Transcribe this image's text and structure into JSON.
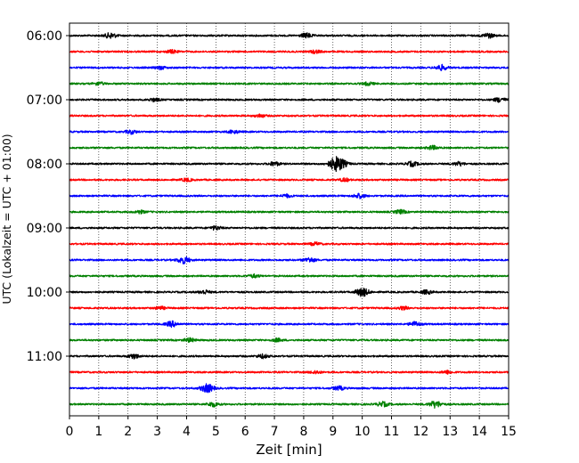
{
  "chart_data": {
    "type": "line",
    "title": "",
    "subtitle": "",
    "xlabel": "Zeit  [min]",
    "ylabel": "UTC (Lokalzeit = UTC + 01:00)",
    "xlim": [
      0,
      15
    ],
    "x_ticks": [
      "0",
      "1",
      "2",
      "3",
      "4",
      "5",
      "6",
      "7",
      "8",
      "9",
      "10",
      "11",
      "12",
      "13",
      "14",
      "15"
    ],
    "y_ticks": [
      "06:00",
      "07:00",
      "08:00",
      "09:00",
      "10:00",
      "11:00"
    ],
    "grid": "vertical dotted",
    "legend": "none",
    "trace_interval_minutes": 15,
    "trace_count": 24,
    "trace_colors": [
      "#000000",
      "#ff0000",
      "#0000ff",
      "#008000"
    ],
    "traces": [
      {
        "start": "06:00",
        "color": "#000000",
        "events": [
          {
            "t": 1.4,
            "amp": 0.35
          },
          {
            "t": 8.1,
            "amp": 0.3
          },
          {
            "t": 14.3,
            "amp": 0.3
          }
        ]
      },
      {
        "start": "06:15",
        "color": "#ff0000",
        "events": [
          {
            "t": 3.5,
            "amp": 0.2
          },
          {
            "t": 8.4,
            "amp": 0.2
          }
        ]
      },
      {
        "start": "06:30",
        "color": "#0000ff",
        "events": [
          {
            "t": 3.1,
            "amp": 0.2
          },
          {
            "t": 12.7,
            "amp": 0.35
          }
        ]
      },
      {
        "start": "06:45",
        "color": "#008000",
        "events": [
          {
            "t": 1.0,
            "amp": 0.2
          },
          {
            "t": 10.2,
            "amp": 0.2
          }
        ]
      },
      {
        "start": "07:00",
        "color": "#000000",
        "events": [
          {
            "t": 2.9,
            "amp": 0.2
          },
          {
            "t": 14.7,
            "amp": 0.3
          }
        ]
      },
      {
        "start": "07:15",
        "color": "#ff0000",
        "events": [
          {
            "t": 6.5,
            "amp": 0.2
          }
        ]
      },
      {
        "start": "07:30",
        "color": "#0000ff",
        "events": [
          {
            "t": 2.1,
            "amp": 0.25
          },
          {
            "t": 5.6,
            "amp": 0.2
          }
        ]
      },
      {
        "start": "07:45",
        "color": "#008000",
        "events": [
          {
            "t": 12.4,
            "amp": 0.25
          }
        ]
      },
      {
        "start": "08:00",
        "color": "#000000",
        "events": [
          {
            "t": 7.0,
            "amp": 0.25
          },
          {
            "t": 9.15,
            "amp": 1.0
          },
          {
            "t": 11.7,
            "amp": 0.3
          },
          {
            "t": 13.3,
            "amp": 0.25
          }
        ]
      },
      {
        "start": "08:15",
        "color": "#ff0000",
        "events": [
          {
            "t": 4.0,
            "amp": 0.2
          },
          {
            "t": 9.4,
            "amp": 0.2
          }
        ]
      },
      {
        "start": "08:30",
        "color": "#0000ff",
        "events": [
          {
            "t": 7.4,
            "amp": 0.2
          },
          {
            "t": 9.9,
            "amp": 0.3
          }
        ]
      },
      {
        "start": "08:45",
        "color": "#008000",
        "events": [
          {
            "t": 2.4,
            "amp": 0.2
          },
          {
            "t": 11.3,
            "amp": 0.25
          }
        ]
      },
      {
        "start": "09:00",
        "color": "#000000",
        "events": [
          {
            "t": 5.0,
            "amp": 0.25
          }
        ]
      },
      {
        "start": "09:15",
        "color": "#ff0000",
        "events": [
          {
            "t": 8.4,
            "amp": 0.2
          }
        ]
      },
      {
        "start": "09:30",
        "color": "#0000ff",
        "events": [
          {
            "t": 3.9,
            "amp": 0.45
          },
          {
            "t": 8.2,
            "amp": 0.3
          }
        ]
      },
      {
        "start": "09:45",
        "color": "#008000",
        "events": [
          {
            "t": 6.3,
            "amp": 0.2
          }
        ]
      },
      {
        "start": "10:00",
        "color": "#000000",
        "events": [
          {
            "t": 4.6,
            "amp": 0.25
          },
          {
            "t": 10.0,
            "amp": 0.55
          },
          {
            "t": 12.2,
            "amp": 0.25
          }
        ]
      },
      {
        "start": "10:15",
        "color": "#ff0000",
        "events": [
          {
            "t": 3.1,
            "amp": 0.2
          },
          {
            "t": 11.4,
            "amp": 0.2
          }
        ]
      },
      {
        "start": "10:30",
        "color": "#0000ff",
        "events": [
          {
            "t": 3.5,
            "amp": 0.35
          },
          {
            "t": 11.8,
            "amp": 0.3
          }
        ]
      },
      {
        "start": "10:45",
        "color": "#008000",
        "events": [
          {
            "t": 4.1,
            "amp": 0.25
          },
          {
            "t": 7.1,
            "amp": 0.2
          }
        ]
      },
      {
        "start": "11:00",
        "color": "#000000",
        "events": [
          {
            "t": 2.2,
            "amp": 0.3
          },
          {
            "t": 6.6,
            "amp": 0.25
          }
        ]
      },
      {
        "start": "11:15",
        "color": "#ff0000",
        "events": [
          {
            "t": 8.4,
            "amp": 0.2
          },
          {
            "t": 12.9,
            "amp": 0.2
          }
        ]
      },
      {
        "start": "11:30",
        "color": "#0000ff",
        "events": [
          {
            "t": 4.7,
            "amp": 0.55
          },
          {
            "t": 9.2,
            "amp": 0.25
          }
        ]
      },
      {
        "start": "11:45",
        "color": "#008000",
        "events": [
          {
            "t": 4.9,
            "amp": 0.3
          },
          {
            "t": 10.7,
            "amp": 0.3
          },
          {
            "t": 12.5,
            "amp": 0.45
          }
        ]
      }
    ]
  }
}
